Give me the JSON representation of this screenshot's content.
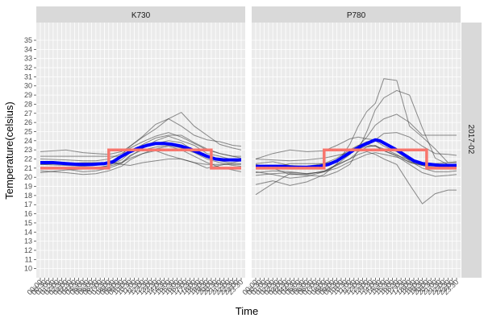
{
  "chart_data": {
    "type": "line",
    "title": "",
    "xlabel": "Time",
    "ylabel": "Temperature(celsius)",
    "ylim": [
      9,
      36.5
    ],
    "y_ticks": [
      10,
      11,
      12,
      13,
      14,
      15,
      16,
      17,
      18,
      19,
      20,
      21,
      22,
      23,
      24,
      25,
      26,
      27,
      28,
      29,
      30,
      31,
      32,
      33,
      34,
      35
    ],
    "x_ticks": [
      "00:00",
      "00:30",
      "01:00",
      "01:30",
      "02:00",
      "02:30",
      "03:00",
      "03:30",
      "04:00",
      "04:30",
      "05:00",
      "05:30",
      "06:00",
      "06:30",
      "07:00",
      "07:30",
      "08:00",
      "08:30",
      "09:00",
      "09:30",
      "10:00",
      "10:30",
      "11:00",
      "11:30",
      "12:00",
      "12:30",
      "13:00",
      "13:30",
      "14:00",
      "14:30",
      "15:00",
      "15:30",
      "16:00",
      "16:30",
      "17:00",
      "17:30",
      "18:00",
      "18:30",
      "19:00",
      "19:30",
      "20:00",
      "20:30",
      "21:00",
      "21:30",
      "22:00",
      "22:30",
      "23:00",
      "23:30"
    ],
    "row_strip": "2017-02",
    "grid": true,
    "legend": "none",
    "colors": {
      "panel_bg": "#ebebeb",
      "grid": "#ffffff",
      "strip_bg": "#d9d9d9",
      "individual": "#333333",
      "mean": "#0000ff",
      "setpoint": "#f8766d"
    },
    "panels": [
      {
        "name": "K730",
        "series": [
          {
            "x": [
              0,
              6,
              10,
              13,
              16,
              19,
              21,
              24,
              27,
              30,
              33,
              36,
              39,
              42,
              45,
              47
            ],
            "y": [
              22.3,
              22.3,
              22.3,
              22.3,
              22.3,
              22.3,
              22.8,
              23.6,
              24.3,
              24.6,
              24.6,
              23.8,
              23.1,
              22.6,
              22.3,
              22.3
            ]
          },
          {
            "x": [
              0,
              6,
              10,
              13,
              16,
              19,
              21,
              24,
              27,
              30,
              33,
              36,
              39,
              42,
              45,
              47
            ],
            "y": [
              22.8,
              23.0,
              22.7,
              22.6,
              22.5,
              22.8,
              23.4,
              24.5,
              25.8,
              26.4,
              25.6,
              24.6,
              24.1,
              23.9,
              23.5,
              23.4
            ]
          },
          {
            "x": [
              0,
              6,
              10,
              13,
              16,
              19,
              21,
              24,
              27,
              30,
              33,
              36,
              39,
              42,
              45,
              47
            ],
            "y": [
              21.0,
              20.9,
              20.6,
              20.7,
              21.0,
              21.5,
              22.3,
              23.2,
              24.0,
              24.5,
              24.0,
              23.5,
              22.6,
              22.3,
              21.9,
              21.9
            ]
          },
          {
            "x": [
              0,
              6,
              10,
              13,
              16,
              19,
              21,
              24,
              27,
              30,
              33,
              36,
              39,
              42,
              45,
              47
            ],
            "y": [
              20.5,
              20.8,
              20.9,
              21.0,
              21.3,
              21.9,
              22.7,
              23.5,
              23.7,
              24.0,
              23.8,
              22.9,
              22.3,
              21.8,
              21.5,
              21.5
            ]
          },
          {
            "x": [
              0,
              6,
              10,
              13,
              16,
              19,
              21,
              24,
              27,
              30,
              33,
              36,
              39,
              42,
              45,
              47
            ],
            "y": [
              21.4,
              21.3,
              21.2,
              21.3,
              21.6,
              22.4,
              23.4,
              24.4,
              25.3,
              26.4,
              27.1,
              25.6,
              24.6,
              23.6,
              23.2,
              23.0
            ]
          },
          {
            "x": [
              0,
              6,
              10,
              13,
              16,
              19,
              21,
              24,
              27,
              30,
              33,
              36,
              39,
              42,
              45,
              47
            ],
            "y": [
              21.5,
              21.5,
              21.5,
              21.5,
              21.5,
              21.6,
              22.1,
              22.6,
              22.9,
              22.4,
              22.0,
              21.6,
              21.4,
              21.4,
              21.4,
              21.4
            ]
          },
          {
            "x": [
              0,
              6,
              10,
              13,
              16,
              19,
              21,
              24,
              27,
              30,
              33,
              36,
              39,
              42,
              45,
              47
            ],
            "y": [
              20.7,
              20.5,
              20.3,
              20.4,
              20.7,
              21.2,
              21.9,
              22.6,
              23.1,
              23.4,
              23.0,
              22.3,
              21.6,
              21.1,
              20.8,
              20.6
            ]
          },
          {
            "x": [
              0,
              6,
              10,
              13,
              16,
              19,
              21,
              24,
              27,
              30,
              33,
              36,
              39,
              42,
              45,
              47
            ],
            "y": [
              22.0,
              21.9,
              21.8,
              21.8,
              22.0,
              22.6,
              23.2,
              23.9,
              24.5,
              24.9,
              24.4,
              23.7,
              23.0,
              22.6,
              22.3,
              22.1
            ]
          },
          {
            "x": [
              0,
              6,
              10,
              13,
              16,
              19,
              21,
              24,
              27,
              30,
              33,
              36,
              39,
              42,
              45,
              47
            ],
            "y": [
              21.4,
              21.5,
              21.6,
              21.6,
              21.6,
              21.4,
              21.3,
              21.6,
              21.8,
              22.0,
              22.0,
              21.6,
              21.0,
              21.3,
              21.6,
              21.8
            ]
          },
          {
            "x": [
              0,
              6,
              10,
              13,
              16,
              19,
              21,
              24,
              27,
              30,
              33,
              36,
              39,
              42,
              45,
              47
            ],
            "y": [
              21.1,
              21.0,
              21.0,
              21.1,
              21.2,
              21.6,
              22.4,
              23.0,
              23.3,
              23.5,
              23.2,
              22.7,
              22.0,
              21.6,
              21.3,
              21.2
            ]
          }
        ],
        "mean": {
          "x": [
            0,
            3,
            6,
            9,
            12,
            15,
            17,
            19,
            21,
            23,
            25,
            27,
            29,
            31,
            33,
            35,
            37,
            39,
            41,
            43,
            45,
            47
          ],
          "y": [
            21.6,
            21.6,
            21.5,
            21.4,
            21.4,
            21.5,
            21.7,
            22.3,
            22.8,
            23.2,
            23.5,
            23.7,
            23.7,
            23.6,
            23.4,
            23.1,
            22.7,
            22.3,
            22.0,
            21.9,
            21.9,
            21.9
          ]
        },
        "setpoint": {
          "x": [
            0,
            16,
            16,
            40,
            40,
            47
          ],
          "y": [
            21.0,
            21.0,
            23.0,
            23.0,
            21.0,
            21.0
          ]
        }
      },
      {
        "name": "P780",
        "series": [
          {
            "x": [
              0,
              4,
              8,
              12,
              16,
              19,
              22,
              24,
              26,
              28,
              30,
              33,
              36,
              39,
              42,
              45,
              47
            ],
            "y": [
              18.1,
              19.3,
              20.4,
              20.2,
              20.1,
              20.6,
              21.4,
              23.0,
              25.0,
              27.4,
              28.7,
              29.5,
              29.0,
              25.4,
              22.1,
              21.4,
              21.3
            ]
          },
          {
            "x": [
              0,
              4,
              8,
              12,
              16,
              19,
              22,
              24,
              26,
              28,
              30,
              33,
              36,
              39,
              42,
              45,
              47
            ],
            "y": [
              19.2,
              19.6,
              19.1,
              19.5,
              20.3,
              21.5,
              23.6,
              25.6,
              27.2,
              28.1,
              30.8,
              30.6,
              25.6,
              24.4,
              23.1,
              21.6,
              21.6
            ]
          },
          {
            "x": [
              0,
              4,
              8,
              12,
              16,
              19,
              22,
              24,
              26,
              28,
              30,
              33,
              36,
              39,
              42,
              45,
              47
            ],
            "y": [
              22.0,
              22.6,
              23.0,
              22.8,
              22.9,
              23.5,
              24.2,
              24.4,
              24.2,
              24.1,
              24.8,
              24.9,
              24.4,
              23.4,
              22.6,
              22.5,
              22.4
            ]
          },
          {
            "x": [
              0,
              4,
              8,
              12,
              16,
              19,
              22,
              24,
              26,
              28,
              30,
              33,
              36,
              39,
              42,
              45,
              47
            ],
            "y": [
              21.0,
              21.1,
              21.5,
              21.5,
              21.5,
              21.8,
              22.5,
              23.4,
              24.4,
              25.7,
              26.4,
              26.9,
              26.0,
              24.6,
              24.6,
              24.6,
              24.6
            ]
          },
          {
            "x": [
              0,
              4,
              8,
              12,
              16,
              19,
              22,
              24,
              26,
              28,
              30,
              33,
              36,
              39,
              42,
              45,
              47
            ],
            "y": [
              22.0,
              21.9,
              21.8,
              21.9,
              22.1,
              22.4,
              22.7,
              23.1,
              23.4,
              23.4,
              22.9,
              22.4,
              21.9,
              21.5,
              21.5,
              21.6,
              21.7
            ]
          },
          {
            "x": [
              0,
              4,
              8,
              12,
              16,
              19,
              22,
              24,
              26,
              28,
              30,
              33,
              36,
              39,
              42,
              45,
              47
            ],
            "y": [
              20.5,
              20.7,
              20.6,
              20.4,
              20.6,
              21.3,
              22.0,
              22.8,
              23.3,
              23.5,
              22.9,
              22.3,
              21.4,
              20.5,
              20.1,
              20.2,
              20.3
            ]
          },
          {
            "x": [
              0,
              4,
              8,
              12,
              16,
              19,
              22,
              24,
              26,
              28,
              30,
              33,
              36,
              39,
              42,
              45,
              47
            ],
            "y": [
              21.5,
              21.7,
              21.3,
              21.2,
              21.5,
              22.1,
              23.0,
              23.5,
              23.6,
              23.4,
              23.1,
              22.5,
              21.6,
              21.3,
              21.1,
              21.0,
              21.1
            ]
          },
          {
            "x": [
              0,
              4,
              8,
              12,
              16,
              19,
              22,
              24,
              26,
              28,
              30,
              33,
              36,
              39,
              42,
              45,
              47
            ],
            "y": [
              20.2,
              20.4,
              20.5,
              20.4,
              20.6,
              21.0,
              21.7,
              22.1,
              22.5,
              22.7,
              22.5,
              22.2,
              21.7,
              21.3,
              21.0,
              21.1,
              21.2
            ]
          },
          {
            "x": [
              0,
              4,
              8,
              12,
              16,
              19,
              22,
              24,
              26,
              28,
              30,
              33,
              36,
              39,
              42,
              45,
              47
            ],
            "y": [
              20.6,
              20.3,
              19.9,
              20.1,
              20.6,
              21.4,
              22.5,
              23.4,
              23.9,
              24.0,
              23.4,
              22.8,
              21.8,
              21.0,
              20.6,
              20.6,
              20.7
            ]
          },
          {
            "x": [
              0,
              4,
              8,
              12,
              16,
              19,
              22,
              24,
              26,
              28,
              30,
              33,
              36,
              39,
              42,
              45,
              47
            ],
            "y": [
              21.4,
              21.0,
              20.3,
              20.3,
              20.7,
              21.4,
              22.0,
              22.5,
              22.8,
              22.5,
              22.0,
              21.4,
              19.2,
              17.1,
              18.2,
              18.6,
              18.6
            ]
          }
        ],
        "mean": {
          "x": [
            0,
            3,
            6,
            9,
            12,
            15,
            17,
            19,
            21,
            23,
            25,
            27,
            28,
            29,
            31,
            33,
            35,
            37,
            39,
            41,
            43,
            45,
            47
          ],
          "y": [
            21.2,
            21.2,
            21.2,
            21.1,
            21.1,
            21.2,
            21.4,
            21.8,
            22.4,
            23.0,
            23.5,
            23.9,
            24.1,
            24.0,
            23.5,
            23.0,
            22.4,
            21.8,
            21.5,
            21.4,
            21.3,
            21.3,
            21.3
          ]
        },
        "setpoint": {
          "x": [
            0,
            16,
            16,
            40,
            40,
            47
          ],
          "y": [
            21.0,
            21.0,
            23.0,
            23.0,
            21.0,
            21.0
          ]
        }
      }
    ]
  }
}
